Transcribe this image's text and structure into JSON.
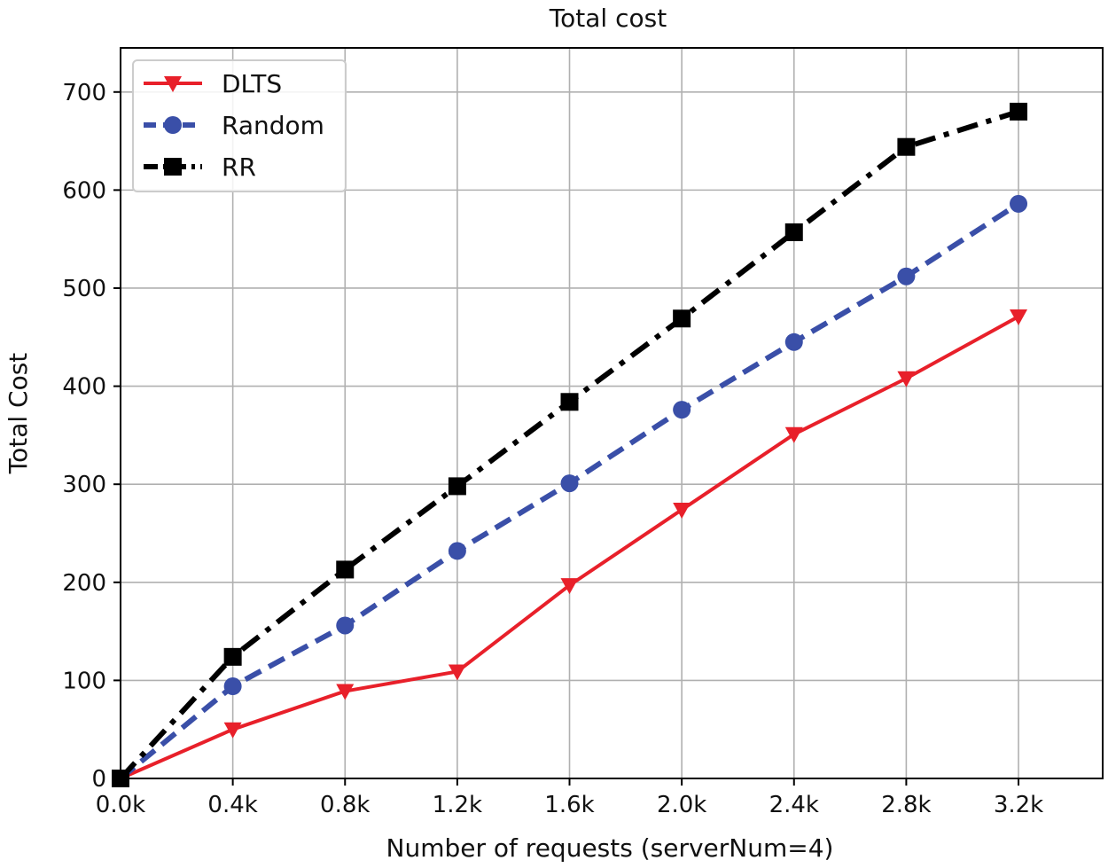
{
  "chart_data": {
    "type": "line",
    "title": "Total cost",
    "xlabel": "Number of requests (serverNum=4)",
    "ylabel": "Total Cost",
    "x": [
      0,
      0.4,
      0.8,
      1.2,
      1.6,
      2.0,
      2.4,
      2.8,
      3.2
    ],
    "xtick_labels": [
      "0.0k",
      "0.4k",
      "0.8k",
      "1.2k",
      "1.6k",
      "2.0k",
      "2.4k",
      "2.8k",
      "3.2k"
    ],
    "yticks": [
      0,
      100,
      200,
      300,
      400,
      500,
      600,
      700
    ],
    "xlim": [
      0,
      3.5
    ],
    "ylim": [
      0,
      745
    ],
    "grid": true,
    "legend_position": "top-left",
    "series": [
      {
        "name": "DLTS",
        "color": "#e8202a",
        "marker": "triangle-down",
        "linestyle": "solid",
        "values": [
          0,
          50,
          89,
          109,
          197,
          274,
          351,
          408,
          471
        ]
      },
      {
        "name": "Random",
        "color": "#3a4fa8",
        "marker": "circle",
        "linestyle": "dashed",
        "values": [
          0,
          94,
          156,
          232,
          301,
          376,
          445,
          512,
          586
        ]
      },
      {
        "name": "RR",
        "color": "#000000",
        "marker": "square",
        "linestyle": "dashdot",
        "values": [
          0,
          124,
          213,
          298,
          384,
          469,
          557,
          644,
          680
        ]
      }
    ]
  }
}
